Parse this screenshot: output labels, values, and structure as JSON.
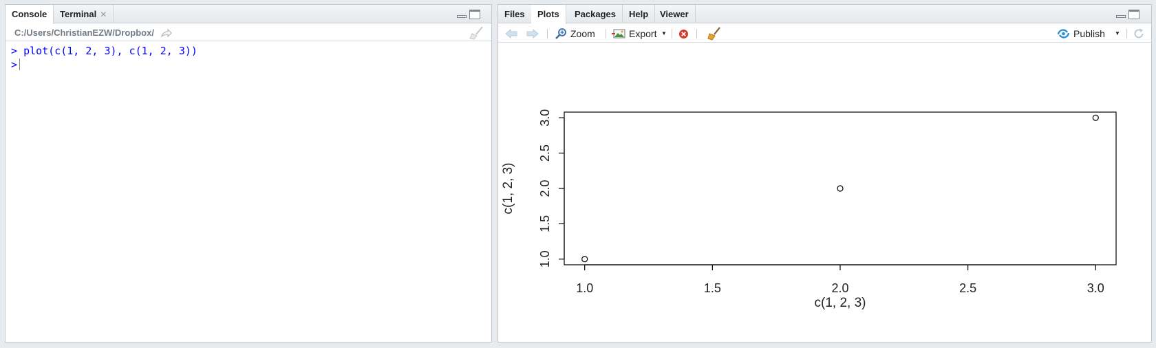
{
  "left_pane": {
    "tabs": [
      {
        "label": "Console",
        "active": true
      },
      {
        "label": "Terminal",
        "active": false,
        "closable": true
      }
    ],
    "path": "C:/Users/ChristianEZW/Dropbox/",
    "console_lines": [
      {
        "prompt": ">",
        "text": "plot(c(1, 2, 3), c(1, 2, 3))"
      },
      {
        "prompt": ">",
        "text": ""
      }
    ]
  },
  "right_pane": {
    "tabs": [
      {
        "label": "Files",
        "active": false
      },
      {
        "label": "Plots",
        "active": true
      },
      {
        "label": "Packages",
        "active": false
      },
      {
        "label": "Help",
        "active": false
      },
      {
        "label": "Viewer",
        "active": false
      }
    ],
    "toolbar": {
      "zoom_label": "Zoom",
      "export_label": "Export",
      "publish_label": "Publish"
    }
  },
  "icons": {
    "back": "back-arrow-icon",
    "forward": "forward-arrow-icon",
    "zoom": "magnifier-icon",
    "export": "export-image-icon",
    "remove": "remove-plot-icon",
    "clear": "broom-icon",
    "publish": "publish-icon",
    "refresh": "refresh-icon",
    "goto": "go-to-directory-icon"
  },
  "colors": {
    "console_text": "#0000ff",
    "publish_accent": "#2c8fd6",
    "remove_red": "#d9382c"
  },
  "chart_data": {
    "type": "scatter",
    "x": [
      1,
      2,
      3
    ],
    "y": [
      1,
      2,
      3
    ],
    "xlabel": "c(1, 2, 3)",
    "ylabel": "c(1, 2, 3)",
    "xlim": [
      0.92,
      3.08
    ],
    "ylim": [
      0.92,
      3.08
    ],
    "xticks": [
      1.0,
      1.5,
      2.0,
      2.5,
      3.0
    ],
    "yticks": [
      1.0,
      1.5,
      2.0,
      2.5,
      3.0
    ],
    "xtick_labels": [
      "1.0",
      "1.5",
      "2.0",
      "2.5",
      "3.0"
    ],
    "ytick_labels": [
      "1.0",
      "1.5",
      "2.0",
      "2.5",
      "3.0"
    ],
    "marker": "open circle",
    "grid": false
  }
}
